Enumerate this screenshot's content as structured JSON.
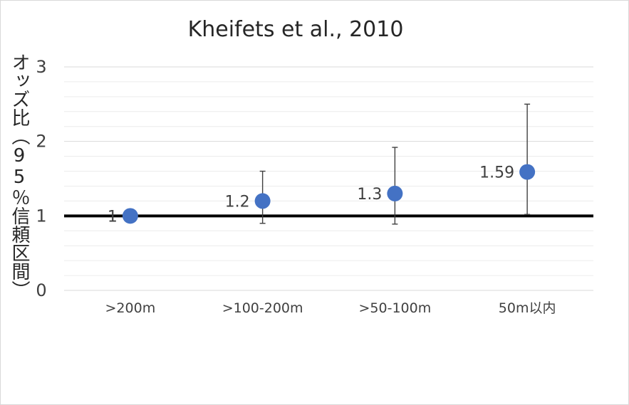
{
  "chart_data": {
    "type": "scatter",
    "title": "Kheifets et al., 2010",
    "ylabel": "オッズ比（95％信頼区間）",
    "xlabel": "",
    "categories": [
      ">200m",
      ">100-200m",
      ">50-100m",
      "50m以内"
    ],
    "series": [
      {
        "values": [
          1,
          1.2,
          1.3,
          1.59
        ],
        "data_labels": [
          "1",
          "1.2",
          "1.3",
          "1.59"
        ],
        "ci_lower": [
          1,
          0.9,
          0.89,
          1.02
        ],
        "ci_upper": [
          1,
          1.6,
          1.92,
          2.5
        ],
        "color": "#4472c4"
      }
    ],
    "reference_line": {
      "value": 1,
      "color": "#000000"
    },
    "yticks": [
      "0",
      "1",
      "2",
      "3"
    ],
    "ylim": [
      0,
      3
    ],
    "grid": true,
    "legend": "none"
  }
}
